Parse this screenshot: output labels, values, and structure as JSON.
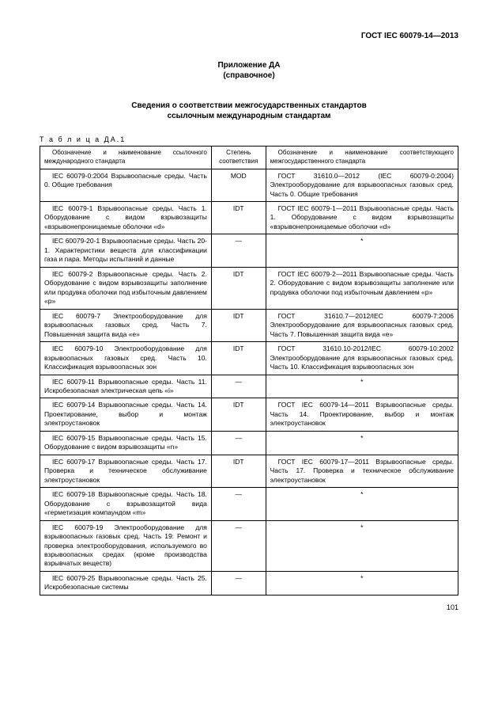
{
  "doc_header": "ГОСТ IEC 60079-14—2013",
  "annex_line1": "Приложение ДА",
  "annex_line2": "(справочное)",
  "section_line1": "Сведения о соответствии межгосударственных стандартов",
  "section_line2": "ссылочным международным стандартам",
  "table_caption": "Т а б л и ц а  ДА.1",
  "headers": {
    "col1": "Обозначение и наименование ссылочного международного стандарта",
    "col2": "Степень соответствия",
    "col3": "Обозначение и наименование соответствующего межгосударственного стандарта"
  },
  "rows": [
    {
      "c1": "IEC 60079-0:2004 Взрывоопасные среды. Часть 0. Общие требования",
      "c2": "MOD",
      "c3": "ГОСТ 31610.0—2012 (IEC 60079-0:2004) Электрооборудование для взрывоопасных газовых сред. Часть 0. Общие требования"
    },
    {
      "c1": "IEC 60079-1 Взрывоопасные среды. Часть 1. Оборудование с видом взрывозащиты «взрывонепроницаемые оболочки «d»",
      "c2": "IDT",
      "c3": "ГОСТ IEC 60079-1—2011 Взрывоопасные среды. Часть 1. Оборудование с видом взрывозащиты «взрывонепроницаемые оболочки «d»"
    },
    {
      "c1": "IEC 60079-20-1 Взрывоопасные среды. Часть 20-1. Характеристики веществ для классификации газа и пара. Методы испытаний и данные",
      "c2": "—",
      "c3": "*"
    },
    {
      "c1": "IEC 60079-2 Взрывоопасные среды. Часть 2. Оборудование с видом взрывозащиты заполнение или продувка оболочки под избыточным давлением «р»",
      "c2": "IDT",
      "c3": "ГОСТ IEC 60079-2—2011 Взрывоопасные среды. Часть 2. Оборудование с видом взрывозащиты заполнение или продувка оболочки под избыточным давлением «р»"
    },
    {
      "c1": "IEC 60079-7 Электрооборудование для взрывоопасных газовых сред. Часть 7. Повышенная защита вида «е»",
      "c2": "IDT",
      "c3": "ГОСТ 31610.7—2012/IEC 60079-7:2006 Электрооборудование для взрывоопасных газовых сред. Часть 7. Повышенная защита вида «е»"
    },
    {
      "c1": "IEC 60079-10 Электрооборудование для взрывоопасных газовых сред. Часть 10. Классификация взрывоопасных зон",
      "c2": "IDT",
      "c3": "ГОСТ 31610.10-2012/IEC 60079-10:2002 Электрооборудование для взрывоопасных газовых сред. Часть 10. Классификация взрывоопасных зон"
    },
    {
      "c1": "IEC 60079-11 Взрывоопасные среды. Часть 11. Искробезопасная электрическая цепь «i»",
      "c2": "—",
      "c3": "*"
    },
    {
      "c1": "IEC 60079-14 Взрывоопасные среды. Часть 14. Проектирование, выбор и монтаж электроустановок",
      "c2": "IDT",
      "c3": "ГОСТ IEC 60079-14—2011 Взрывоопасные среды. Часть 14. Проектирование, выбор и монтаж электроустановок"
    },
    {
      "c1": "IEC 60079-15 Взрывоопасные среды. Часть 15. Оборудование с видом взрывозащиты «n»",
      "c2": "—",
      "c3": "*"
    },
    {
      "c1": "IEC 60079-17 Взрывоопасные среды. Часть 17. Проверка и техническое обслуживание электроустановок",
      "c2": "IDT",
      "c3": "ГОСТ IEC 60079-17—2011 Взрывоопасные среды. Часть 17. Проверка и техническое обслуживание электроустановок"
    },
    {
      "c1": "IEC 60079-18 Взрывоопасные среды. Часть 18. Оборудование с взрывозащитой вида «герметизация компаундом «m»",
      "c2": "—",
      "c3": "*"
    },
    {
      "c1": "IEC 60079-19 Электрооборудование для взрывоопасных газовых сред. Часть 19: Ремонт и проверка электрооборудования, используемого во взрывоопасных средах (кроме производства взрывчатых веществ)",
      "c2": "—",
      "c3": "*"
    },
    {
      "c1": "IEC 60079-25 Взрывоопасные среды. Часть 25. Искробезопасные системы",
      "c2": "—",
      "c3": "*"
    }
  ],
  "page_num": "101"
}
